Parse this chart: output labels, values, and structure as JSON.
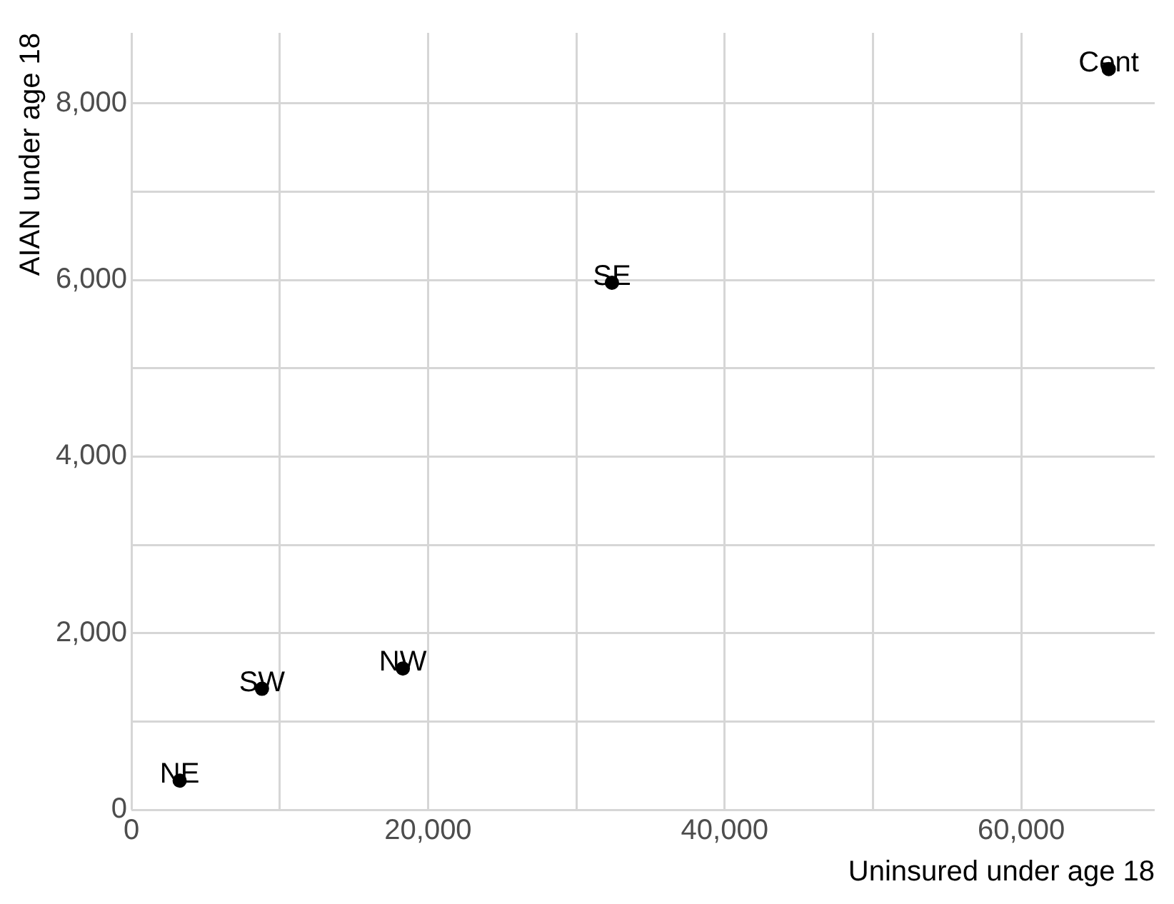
{
  "chart_data": {
    "type": "scatter",
    "xlabel": "Uninsured under age 18",
    "ylabel": "AIAN under age 18",
    "x": [
      3250,
      8800,
      18300,
      32400,
      65900
    ],
    "values": [
      330,
      1370,
      1600,
      5970,
      8390
    ],
    "color": "#000000",
    "marker": "circle",
    "grid": true,
    "legend": false,
    "xlim": [
      0,
      69000
    ],
    "ylim": [
      0,
      8800
    ],
    "xticks": [
      0,
      {
        "value": 10000,
        "label": null
      },
      {
        "value": 20000,
        "label": "20,000"
      },
      {
        "value": 30000,
        "label": null
      },
      {
        "value": 40000,
        "label": "40,000"
      },
      {
        "value": 50000,
        "label": null
      },
      {
        "value": 60000,
        "label": "60,000"
      }
    ],
    "yticks": [
      0,
      {
        "value": 1000,
        "label": null
      },
      {
        "value": 2000,
        "label": "2,000"
      },
      {
        "value": 3000,
        "label": null
      },
      {
        "value": 4000,
        "label": "4,000"
      },
      {
        "value": 5000,
        "label": null
      },
      {
        "value": 6000,
        "label": "6,000"
      },
      {
        "value": 7000,
        "label": null
      },
      {
        "value": 8000,
        "label": "8,000"
      }
    ],
    "annotations": [
      {
        "text": "NE",
        "x": 3250,
        "y": 330
      },
      {
        "text": "SW",
        "x": 8800,
        "y": 1370
      },
      {
        "text": "NW",
        "x": 18300,
        "y": 1600
      },
      {
        "text": "SE",
        "x": 32400,
        "y": 5970
      },
      {
        "text": "Cent",
        "x": 65900,
        "y": 8390
      }
    ]
  }
}
